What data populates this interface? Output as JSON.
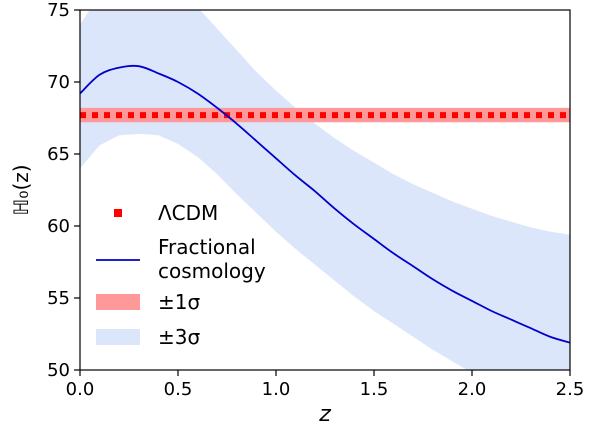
{
  "chart_data": {
    "type": "line",
    "xlabel": "z",
    "ylabel": "ℍ₀(z)",
    "xlim": [
      0,
      2.5
    ],
    "ylim": [
      50,
      75
    ],
    "xticks": [
      "0.0",
      "0.5",
      "1.0",
      "1.5",
      "2.0",
      "2.5"
    ],
    "xtick_values": [
      0,
      0.5,
      1,
      1.5,
      2,
      2.5
    ],
    "yticks": [
      "50",
      "55",
      "60",
      "65",
      "70",
      "75"
    ],
    "ytick_values": [
      50,
      55,
      60,
      65,
      70,
      75
    ],
    "grid": false,
    "legend_position": "center-left",
    "series": [
      {
        "name": "ΛCDM",
        "style": "dotted-square",
        "color": "#ff0000",
        "x": [
          0,
          2.5
        ],
        "y": [
          67.7,
          67.7
        ]
      },
      {
        "name": "Fractional cosmology",
        "style": "solid",
        "color": "#0000cc",
        "x": [
          0,
          0.1,
          0.2,
          0.3,
          0.4,
          0.5,
          0.6,
          0.7,
          0.8,
          0.9,
          1.0,
          1.1,
          1.2,
          1.3,
          1.4,
          1.5,
          1.6,
          1.7,
          1.8,
          1.9,
          2.0,
          2.1,
          2.2,
          2.3,
          2.4,
          2.5
        ],
        "y": [
          69.2,
          70.5,
          71.0,
          71.1,
          70.6,
          70.0,
          69.2,
          68.2,
          67.1,
          65.9,
          64.7,
          63.5,
          62.4,
          61.2,
          60.1,
          59.1,
          58.1,
          57.2,
          56.3,
          55.5,
          54.8,
          54.1,
          53.5,
          52.9,
          52.3,
          51.9
        ]
      }
    ],
    "bands": [
      {
        "name": "±1σ",
        "color": "#ff9999",
        "x": [
          0,
          2.5
        ],
        "lower": [
          67.2,
          67.2
        ],
        "upper": [
          68.2,
          68.2
        ]
      },
      {
        "name": "±3σ",
        "color": "#dce6fa",
        "x": [
          0,
          0.1,
          0.2,
          0.3,
          0.4,
          0.5,
          0.6,
          0.7,
          0.8,
          0.9,
          1.0,
          1.1,
          1.2,
          1.3,
          1.4,
          1.5,
          1.6,
          1.7,
          1.8,
          1.9,
          2.0,
          2.1,
          2.2,
          2.3,
          2.4,
          2.5
        ],
        "lower": [
          64.0,
          65.6,
          66.3,
          66.4,
          66.3,
          65.7,
          64.8,
          63.6,
          62.2,
          60.9,
          59.6,
          58.4,
          57.3,
          56.2,
          55.1,
          54.1,
          53.2,
          52.3,
          51.4,
          50.6,
          49.8,
          49.1,
          48.5,
          47.9,
          47.3,
          46.8
        ],
        "upper": [
          74.0,
          76.0,
          76.0,
          76.0,
          76.0,
          76.0,
          75.2,
          73.7,
          72.2,
          70.7,
          69.4,
          68.2,
          67.1,
          66.1,
          65.2,
          64.4,
          63.6,
          62.9,
          62.3,
          61.7,
          61.2,
          60.7,
          60.3,
          59.9,
          59.6,
          59.4
        ]
      }
    ],
    "legend": [
      {
        "label": "ΛCDM",
        "kind": "dotted",
        "color": "#ff0000"
      },
      {
        "label": "Fractional\ncosmology",
        "kind": "line",
        "color": "#0000cc"
      },
      {
        "label": "±1σ",
        "kind": "patch",
        "color": "#ff9999"
      },
      {
        "label": "±3σ",
        "kind": "patch",
        "color": "#dce6fa"
      }
    ]
  }
}
